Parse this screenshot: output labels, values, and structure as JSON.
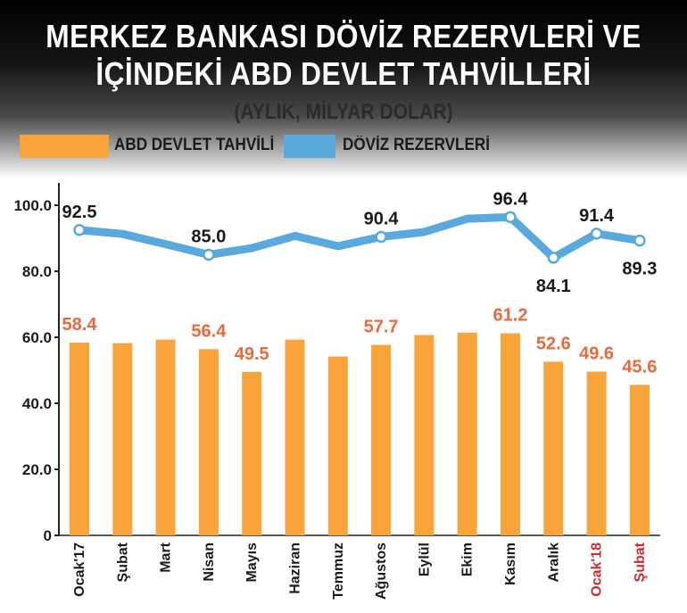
{
  "header": {
    "title_line1": "MERKEZ BANKASI DÖVİZ REZERVLERİ VE",
    "title_line2": "İÇİNDEKİ ABD DEVLET TAHVİLLERİ",
    "subtitle": "(AYLIK, MİLYAR DOLAR)"
  },
  "colors": {
    "bar": "#f9a43a",
    "line": "#5aa9dd",
    "label_orange": "#e8693c",
    "label_red": "#d12a2a",
    "text_dark": "#1a1a1a"
  },
  "chart_data": {
    "type": "bar+line",
    "categories": [
      "Ocak'17",
      "Şubat",
      "Mart",
      "Nisan",
      "Mayıs",
      "Haziran",
      "Temmuz",
      "Ağustos",
      "Eylül",
      "Ekim",
      "Kasım",
      "Aralık",
      "Ocak'18",
      "Şubat"
    ],
    "highlighted_categories": [
      12,
      13
    ],
    "series": [
      {
        "name": "ABD DEVLET TAHVİLİ",
        "type": "bar",
        "values": [
          58.4,
          58.2,
          59.3,
          56.4,
          49.5,
          59.3,
          54.2,
          57.7,
          60.7,
          61.4,
          61.2,
          52.6,
          49.6,
          45.6
        ],
        "labeled_indices": [
          0,
          3,
          4,
          7,
          10,
          11,
          12,
          13
        ]
      },
      {
        "name": "DÖVİZ REZERVLERİ",
        "type": "line",
        "values": [
          92.5,
          91.3,
          88.2,
          85.0,
          87.0,
          90.7,
          87.6,
          90.4,
          91.9,
          95.9,
          96.4,
          84.1,
          91.4,
          89.3
        ],
        "labeled_indices": [
          0,
          3,
          7,
          10,
          11,
          12,
          13
        ]
      }
    ],
    "y_ticks": [
      "0",
      "20.0",
      "40.0",
      "60.0",
      "80.0",
      "100.0"
    ],
    "y_tick_values": [
      0,
      20,
      40,
      60,
      80,
      100
    ],
    "ylim": [
      0,
      100
    ],
    "legend_position": "top-left",
    "grid": false
  }
}
